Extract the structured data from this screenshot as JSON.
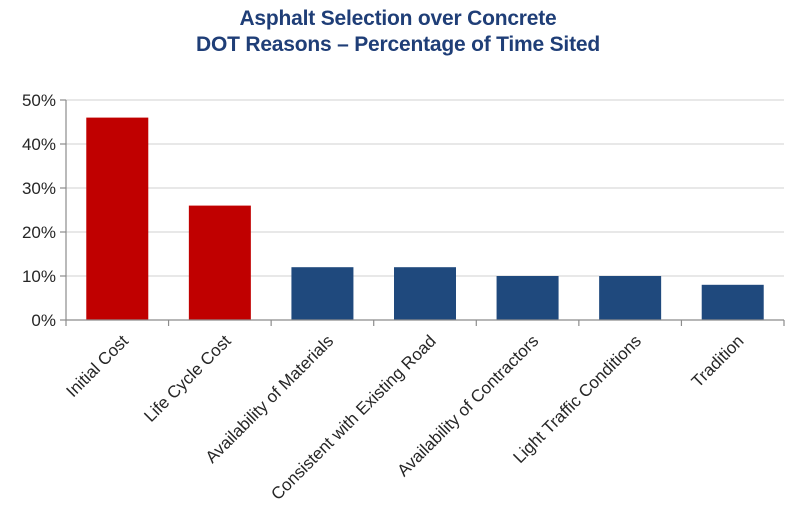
{
  "chart_data": {
    "type": "bar",
    "title_lines": [
      "Asphalt Selection over Concrete",
      "DOT Reasons – Percentage of Time Sited"
    ],
    "categories": [
      "Initial Cost",
      "Life Cycle Cost",
      "Availability of Materials",
      "Consistent with Existing Road",
      "Availability of Contractors",
      "Light Traffic Conditions",
      "Tradition"
    ],
    "values": [
      46,
      26,
      12,
      12,
      10,
      10,
      8
    ],
    "bar_colors": [
      "#c00000",
      "#c00000",
      "#1f497d",
      "#1f497d",
      "#1f497d",
      "#1f497d",
      "#1f497d"
    ],
    "ylim": [
      0,
      50
    ],
    "yticks": [
      0,
      10,
      20,
      30,
      40,
      50
    ],
    "ytick_labels": [
      "0%",
      "10%",
      "20%",
      "30%",
      "40%",
      "50%"
    ],
    "grid": true,
    "xlabel": "",
    "ylabel": "",
    "legend": "none"
  }
}
